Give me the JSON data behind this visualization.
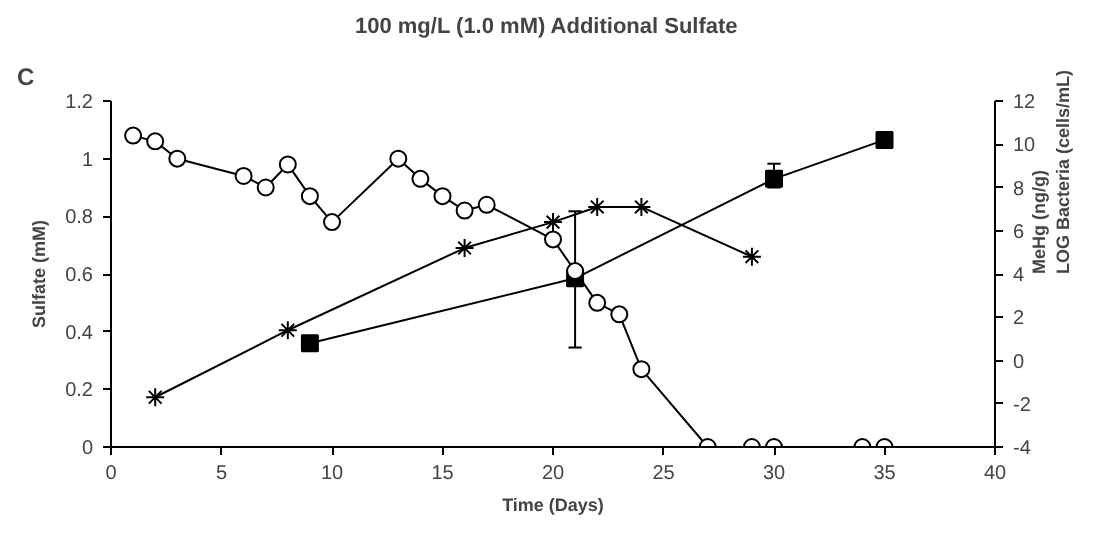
{
  "chart_data": {
    "type": "line",
    "title": "100 mg/L  (1.0 mM)  Additional Sulfate",
    "annotations": [
      "C"
    ],
    "xlabel": "Time (Days)",
    "ylabel": "Sulfate (mM)",
    "y2label": "MeHg (ng/g)\nLOG Bacteria (cells/mL)",
    "xlim": [
      0,
      40
    ],
    "xticks": [
      0,
      5,
      10,
      15,
      20,
      25,
      30,
      35,
      40
    ],
    "ylim": [
      0,
      1.2
    ],
    "yticks": [
      0,
      {
        "value": 0.2,
        "label": "0.2"
      },
      {
        "value": 0.4,
        "label": "0.4"
      },
      {
        "value": 0.6,
        "label": "0.6"
      },
      {
        "value": 0.8,
        "label": "0.8"
      },
      1,
      {
        "value": 1.2,
        "label": "1.2"
      }
    ],
    "y2lim": [
      -4,
      12
    ],
    "y2ticks": [
      -4,
      -2,
      0,
      2,
      4,
      6,
      8,
      10,
      12
    ],
    "grid": false,
    "series": [
      {
        "color": "#000000",
        "marker": "circle",
        "x": [
          1,
          2,
          3,
          6,
          7,
          8,
          9,
          10,
          13,
          14,
          15,
          16,
          17,
          20,
          21,
          22,
          23,
          24,
          27,
          29,
          30,
          34,
          35
        ],
        "values": [
          1.08,
          1.06,
          1.0,
          0.94,
          0.9,
          0.98,
          0.87,
          0.78,
          1.0,
          0.93,
          0.87,
          0.82,
          0.84,
          0.72,
          0.61,
          0.5,
          0.46,
          0.27,
          0,
          0,
          0,
          0,
          0
        ]
      },
      {
        "color": "#000000",
        "marker": "square",
        "axis": "y2",
        "x": [
          9,
          21,
          30,
          35
        ],
        "values": [
          0.8,
          3.8,
          8.4,
          10.2
        ],
        "errors": [
          0.3,
          [
            0.6,
            6.9
          ],
          [
            8.0,
            9.1
          ],
          null
        ]
      },
      {
        "color": "#000000",
        "marker": "cross",
        "axis": "y2",
        "x": [
          2,
          8,
          16,
          20,
          22,
          24,
          29
        ],
        "values": [
          -1.7,
          1.4,
          5.2,
          6.4,
          7.1,
          7.1,
          4.8
        ]
      }
    ]
  }
}
